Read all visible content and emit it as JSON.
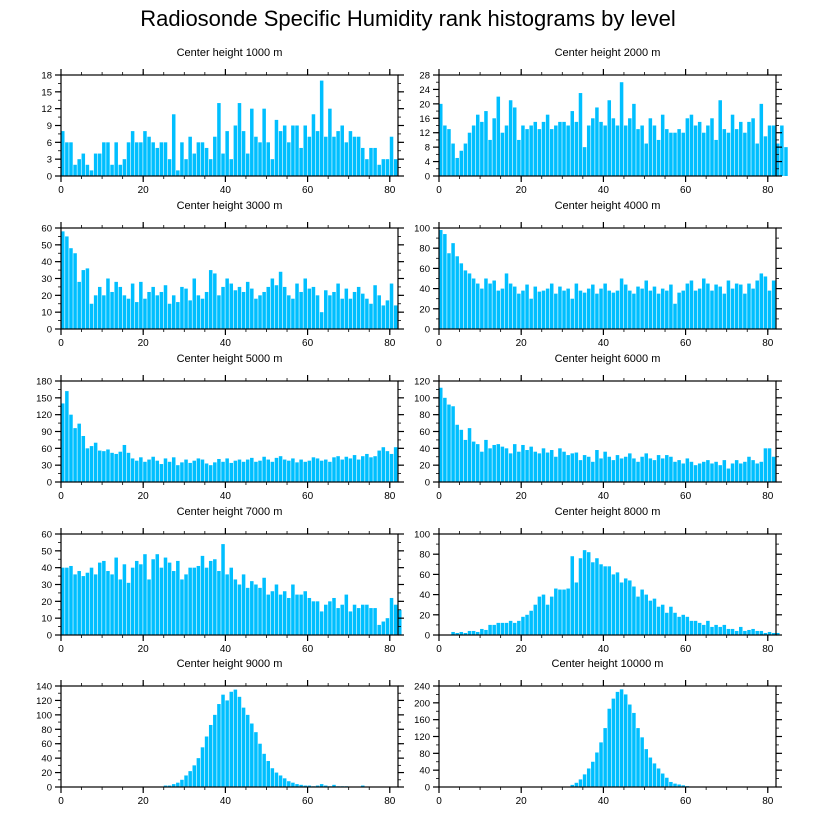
{
  "title": "Radiosonde Specific Humidity rank histograms by level",
  "bar_color": "#00bfff",
  "chart_data": [
    {
      "type": "bar",
      "title": "Center height 1000 m",
      "xlabel": "",
      "ylabel": "",
      "xlim": [
        0,
        82
      ],
      "ylim": [
        0,
        18
      ],
      "yticks": [
        0,
        3,
        6,
        9,
        12,
        15,
        18
      ],
      "xticks": [
        0,
        20,
        40,
        60,
        80
      ],
      "values": [
        8,
        6,
        6,
        2,
        3,
        4,
        2,
        1,
        4,
        4,
        6,
        6,
        2,
        6,
        2,
        3,
        6,
        8,
        6,
        6,
        8,
        7,
        6,
        5,
        6,
        6,
        3,
        11,
        1,
        6,
        3,
        7,
        4,
        6,
        6,
        5,
        3,
        7,
        13,
        4,
        8,
        3,
        9,
        13,
        8,
        4,
        12,
        7,
        6,
        12,
        6,
        3,
        10,
        8,
        9,
        6,
        9,
        9,
        5,
        9,
        7,
        11,
        8,
        17,
        7,
        12,
        7,
        8,
        9,
        6,
        8,
        7,
        7,
        5,
        3,
        5,
        5,
        2,
        3,
        3,
        7,
        3
      ]
    },
    {
      "type": "bar",
      "title": "Center height 2000 m",
      "xlabel": "",
      "ylabel": "",
      "xlim": [
        0,
        82
      ],
      "ylim": [
        0,
        28
      ],
      "yticks": [
        0,
        4,
        8,
        12,
        16,
        20,
        24,
        28
      ],
      "xticks": [
        0,
        20,
        40,
        60,
        80
      ],
      "values": [
        20,
        14,
        13,
        9,
        5,
        7,
        9,
        12,
        14,
        17,
        15,
        18,
        10,
        16,
        22,
        12,
        14,
        21,
        19,
        10,
        14,
        13,
        14,
        15,
        13,
        15,
        17,
        13,
        14,
        15,
        15,
        14,
        18,
        15,
        23,
        8,
        14,
        16,
        19,
        15,
        14,
        21,
        16,
        14,
        26,
        14,
        16,
        20,
        13,
        14,
        9,
        16,
        14,
        10,
        17,
        13,
        12,
        12,
        13,
        12,
        16,
        17,
        14,
        15,
        12,
        14,
        16,
        10,
        21,
        13,
        12,
        17,
        13,
        15,
        12,
        15,
        16,
        9,
        20,
        11,
        14,
        14,
        9,
        14,
        8
      ]
    },
    {
      "type": "bar",
      "title": "Center height 3000 m",
      "xlabel": "",
      "ylabel": "",
      "xlim": [
        0,
        82
      ],
      "ylim": [
        0,
        60
      ],
      "yticks": [
        0,
        10,
        20,
        30,
        40,
        50,
        60
      ],
      "xticks": [
        0,
        20,
        40,
        60,
        80
      ],
      "values": [
        58,
        55,
        48,
        45,
        28,
        35,
        36,
        15,
        20,
        25,
        20,
        30,
        22,
        28,
        25,
        20,
        18,
        27,
        16,
        28,
        18,
        22,
        25,
        20,
        22,
        26,
        15,
        20,
        16,
        25,
        24,
        17,
        30,
        20,
        18,
        22,
        35,
        33,
        20,
        25,
        30,
        27,
        23,
        25,
        22,
        28,
        24,
        18,
        20,
        22,
        25,
        30,
        26,
        34,
        25,
        20,
        18,
        27,
        22,
        30,
        24,
        25,
        20,
        10,
        23,
        20,
        22,
        27,
        18,
        24,
        18,
        22,
        25,
        21,
        18,
        15,
        26,
        20,
        14,
        17,
        27,
        14
      ]
    },
    {
      "type": "bar",
      "title": "Center height 4000 m",
      "xlabel": "",
      "ylabel": "",
      "xlim": [
        0,
        82
      ],
      "ylim": [
        0,
        100
      ],
      "yticks": [
        0,
        20,
        40,
        60,
        80,
        100
      ],
      "xticks": [
        0,
        20,
        40,
        60,
        80
      ],
      "values": [
        98,
        94,
        75,
        85,
        72,
        65,
        58,
        55,
        50,
        45,
        40,
        50,
        45,
        48,
        38,
        40,
        55,
        45,
        42,
        35,
        38,
        44,
        30,
        42,
        37,
        38,
        40,
        45,
        35,
        42,
        38,
        40,
        30,
        45,
        38,
        36,
        40,
        44,
        35,
        40,
        45,
        38,
        36,
        38,
        50,
        44,
        38,
        35,
        42,
        40,
        48,
        38,
        42,
        35,
        40,
        38,
        44,
        25,
        36,
        38,
        45,
        48,
        38,
        40,
        50,
        45,
        38,
        44,
        42,
        35,
        48,
        40,
        45,
        44,
        35,
        45,
        40,
        48,
        55,
        52,
        38,
        48
      ]
    },
    {
      "type": "bar",
      "title": "Center height 5000 m",
      "xlabel": "",
      "ylabel": "",
      "xlim": [
        0,
        82
      ],
      "ylim": [
        0,
        180
      ],
      "yticks": [
        0,
        30,
        60,
        90,
        120,
        150,
        180
      ],
      "xticks": [
        0,
        20,
        40,
        60,
        80
      ],
      "values": [
        140,
        162,
        120,
        96,
        104,
        82,
        60,
        64,
        70,
        56,
        55,
        58,
        52,
        50,
        54,
        66,
        52,
        42,
        38,
        44,
        36,
        40,
        45,
        38,
        32,
        42,
        36,
        44,
        30,
        35,
        40,
        34,
        38,
        42,
        40,
        33,
        30,
        35,
        41,
        36,
        42,
        34,
        38,
        40,
        36,
        40,
        43,
        36,
        38,
        45,
        40,
        36,
        43,
        46,
        40,
        38,
        42,
        35,
        40,
        36,
        38,
        44,
        42,
        38,
        40,
        36,
        44,
        46,
        40,
        45,
        42,
        48,
        40,
        46,
        50,
        44,
        46,
        56,
        62,
        55,
        50,
        62
      ]
    },
    {
      "type": "bar",
      "title": "Center height 6000 m",
      "xlabel": "",
      "ylabel": "",
      "xlim": [
        0,
        82
      ],
      "ylim": [
        0,
        120
      ],
      "yticks": [
        0,
        20,
        40,
        60,
        80,
        100,
        120
      ],
      "xticks": [
        0,
        20,
        40,
        60,
        80
      ],
      "values": [
        112,
        100,
        92,
        90,
        68,
        62,
        50,
        64,
        48,
        45,
        36,
        50,
        40,
        44,
        45,
        42,
        40,
        34,
        45,
        36,
        44,
        38,
        42,
        36,
        34,
        40,
        35,
        38,
        30,
        40,
        36,
        32,
        34,
        35,
        26,
        32,
        30,
        24,
        38,
        28,
        36,
        30,
        26,
        32,
        28,
        30,
        34,
        28,
        24,
        30,
        34,
        28,
        26,
        32,
        28,
        32,
        30,
        24,
        26,
        22,
        28,
        24,
        20,
        22,
        24,
        26,
        22,
        24,
        20,
        26,
        16,
        22,
        26,
        22,
        24,
        30,
        26,
        22,
        24,
        40,
        40,
        30
      ]
    },
    {
      "type": "bar",
      "title": "Center height 7000 m",
      "xlabel": "",
      "ylabel": "",
      "xlim": [
        0,
        82
      ],
      "ylim": [
        0,
        60
      ],
      "yticks": [
        0,
        10,
        20,
        30,
        40,
        50,
        60
      ],
      "xticks": [
        0,
        20,
        40,
        60,
        80
      ],
      "values": [
        40,
        40,
        41,
        36,
        38,
        35,
        37,
        40,
        36,
        43,
        44,
        38,
        36,
        46,
        33,
        42,
        31,
        40,
        44,
        42,
        48,
        33,
        45,
        48,
        40,
        46,
        43,
        38,
        44,
        33,
        36,
        40,
        40,
        41,
        47,
        40,
        44,
        45,
        38,
        54,
        36,
        40,
        33,
        30,
        36,
        28,
        32,
        30,
        28,
        34,
        24,
        26,
        30,
        24,
        26,
        22,
        30,
        24,
        24,
        26,
        22,
        20,
        20,
        14,
        18,
        20,
        22,
        16,
        18,
        24,
        14,
        18,
        16,
        18,
        18,
        16,
        16,
        6,
        8,
        10,
        22,
        18,
        15
      ]
    },
    {
      "type": "bar",
      "title": "Center height 8000 m",
      "xlabel": "",
      "ylabel": "",
      "xlim": [
        0,
        82
      ],
      "ylim": [
        0,
        100
      ],
      "yticks": [
        0,
        20,
        40,
        60,
        80,
        100
      ],
      "xticks": [
        0,
        20,
        40,
        60,
        80
      ],
      "values": [
        0,
        0,
        0,
        3,
        2,
        3,
        2,
        4,
        4,
        3,
        6,
        5,
        10,
        10,
        12,
        12,
        12,
        14,
        12,
        14,
        18,
        20,
        24,
        30,
        38,
        40,
        30,
        38,
        46,
        45,
        45,
        46,
        78,
        52,
        76,
        84,
        82,
        72,
        76,
        70,
        68,
        68,
        60,
        62,
        52,
        56,
        54,
        48,
        38,
        45,
        40,
        34,
        36,
        28,
        30,
        22,
        28,
        22,
        18,
        20,
        18,
        14,
        14,
        12,
        10,
        14,
        8,
        10,
        8,
        10,
        6,
        6,
        4,
        8,
        4,
        5,
        6,
        4,
        4,
        2,
        3,
        2,
        2
      ]
    },
    {
      "type": "bar",
      "title": "Center height 9000 m",
      "xlabel": "",
      "ylabel": "",
      "xlim": [
        0,
        82
      ],
      "ylim": [
        0,
        140
      ],
      "yticks": [
        0,
        20,
        40,
        60,
        80,
        100,
        120,
        140
      ],
      "xticks": [
        0,
        20,
        40,
        60,
        80
      ],
      "values": [
        0,
        0,
        0,
        0,
        0,
        0,
        0,
        0,
        0,
        0,
        0,
        0,
        0,
        0,
        0,
        0,
        0,
        0,
        0,
        0,
        0,
        0,
        0,
        0,
        0,
        2,
        2,
        4,
        6,
        10,
        16,
        22,
        30,
        40,
        55,
        70,
        86,
        100,
        115,
        128,
        120,
        132,
        135,
        125,
        110,
        100,
        88,
        76,
        60,
        46,
        36,
        26,
        20,
        16,
        12,
        8,
        6,
        4,
        3,
        2,
        2,
        1,
        2,
        4,
        2,
        1,
        3,
        1,
        1,
        1,
        0,
        0,
        0,
        2,
        0,
        0,
        0,
        0,
        0,
        0,
        0,
        0
      ]
    },
    {
      "type": "bar",
      "title": "Center height 10000 m",
      "xlabel": "",
      "ylabel": "",
      "xlim": [
        0,
        82
      ],
      "ylim": [
        0,
        240
      ],
      "yticks": [
        0,
        40,
        80,
        120,
        160,
        200,
        240
      ],
      "xticks": [
        0,
        20,
        40,
        60,
        80
      ],
      "values": [
        0,
        0,
        0,
        0,
        0,
        0,
        0,
        0,
        0,
        0,
        0,
        0,
        0,
        0,
        0,
        0,
        0,
        0,
        0,
        0,
        0,
        0,
        0,
        0,
        0,
        0,
        0,
        0,
        0,
        0,
        0,
        0,
        5,
        10,
        18,
        30,
        44,
        60,
        82,
        106,
        140,
        186,
        210,
        226,
        232,
        220,
        196,
        176,
        140,
        118,
        90,
        70,
        56,
        44,
        32,
        22,
        12,
        8,
        6,
        4,
        2,
        1,
        0,
        0,
        0,
        0,
        0,
        0,
        0,
        0,
        0,
        0,
        0,
        0,
        0,
        0,
        0,
        0,
        0,
        0,
        0,
        0
      ]
    }
  ]
}
